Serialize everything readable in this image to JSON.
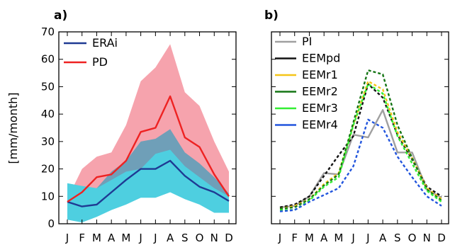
{
  "chart_data": [
    {
      "panel_label": "a)",
      "type": "line",
      "x": [
        "J",
        "F",
        "M",
        "A",
        "M",
        "J",
        "J",
        "A",
        "S",
        "O",
        "N",
        "D"
      ],
      "ylabel": "[mm/month]",
      "ylim": [
        0,
        70
      ],
      "yticks": [
        0,
        10,
        20,
        30,
        40,
        50,
        60,
        70
      ],
      "legend_position": "top-left",
      "series": [
        {
          "name": "ERAi",
          "color": "#1f3a93",
          "values": [
            8,
            6.3,
            7,
            11.5,
            16,
            20,
            20,
            23,
            17.5,
            13.5,
            11.5,
            8.3
          ]
        },
        {
          "name": "PD",
          "color": "#ee2222",
          "values": [
            8,
            11.5,
            17,
            18,
            23,
            33.5,
            35,
            46.5,
            31.5,
            28,
            18,
            10
          ]
        }
      ],
      "bands": [
        {
          "color": "#f6a3ad",
          "lower": [
            2.5,
            3,
            4.5,
            7,
            9,
            12,
            14,
            17,
            14,
            12.5,
            8,
            5
          ],
          "upper": [
            9,
            20,
            24.5,
            26,
            36,
            52,
            57,
            65.5,
            48,
            43,
            30,
            19
          ]
        },
        {
          "color": "#6f9fb8",
          "lower": [
            4,
            3.5,
            6,
            8,
            11,
            14,
            13.5,
            15,
            13,
            12,
            9,
            5
          ],
          "upper": [
            13,
            12,
            13,
            19,
            23,
            30,
            31,
            34.5,
            26,
            22,
            17,
            11
          ]
        },
        {
          "color": "#4ecfe0",
          "lower": [
            1.5,
            0.5,
            2.5,
            5,
            7,
            9.5,
            9.5,
            11.5,
            9,
            7,
            4,
            4
          ],
          "upper": [
            14.8,
            13.8,
            13,
            16,
            19,
            20,
            25.5,
            27,
            21,
            17,
            13,
            10
          ]
        }
      ]
    },
    {
      "panel_label": "b)",
      "type": "line",
      "x": [
        "J",
        "F",
        "M",
        "A",
        "M",
        "J",
        "J",
        "A",
        "S",
        "O",
        "N",
        "D"
      ],
      "ylim": [
        0,
        70
      ],
      "legend_position": "top-left",
      "series": [
        {
          "name": "PI",
          "color": "#a0a0a0",
          "dash": "solid",
          "values": [
            6,
            6.5,
            10,
            18.5,
            18,
            32.5,
            31.5,
            41.5,
            26,
            26,
            12.5,
            9.5
          ]
        },
        {
          "name": "EEMpd",
          "color": "#111111",
          "dash": "dashed",
          "values": [
            6,
            7,
            10,
            17.5,
            25,
            32,
            51,
            46,
            32.5,
            23.5,
            13.5,
            10
          ]
        },
        {
          "name": "EEMr1",
          "color": "#f5c518",
          "dash": "dashed",
          "values": [
            5.5,
            6.5,
            9,
            14.5,
            18.5,
            36,
            52,
            49,
            33.5,
            24,
            13,
            9
          ]
        },
        {
          "name": "EEMr2",
          "color": "#157515",
          "dash": "dashed",
          "values": [
            5.5,
            6,
            9,
            14,
            18,
            37,
            56,
            54.5,
            36,
            24,
            12.5,
            8.5
          ]
        },
        {
          "name": "EEMr3",
          "color": "#33ee33",
          "dash": "dashed",
          "values": [
            5,
            5,
            8.5,
            13.5,
            17,
            36,
            51,
            47.5,
            32,
            22,
            12,
            8
          ]
        },
        {
          "name": "EEMr4",
          "color": "#2255dd",
          "dash": "dashed",
          "values": [
            4.5,
            5,
            8,
            10.5,
            13,
            21,
            38,
            35,
            24.5,
            17,
            10,
            6.5
          ]
        }
      ]
    }
  ]
}
